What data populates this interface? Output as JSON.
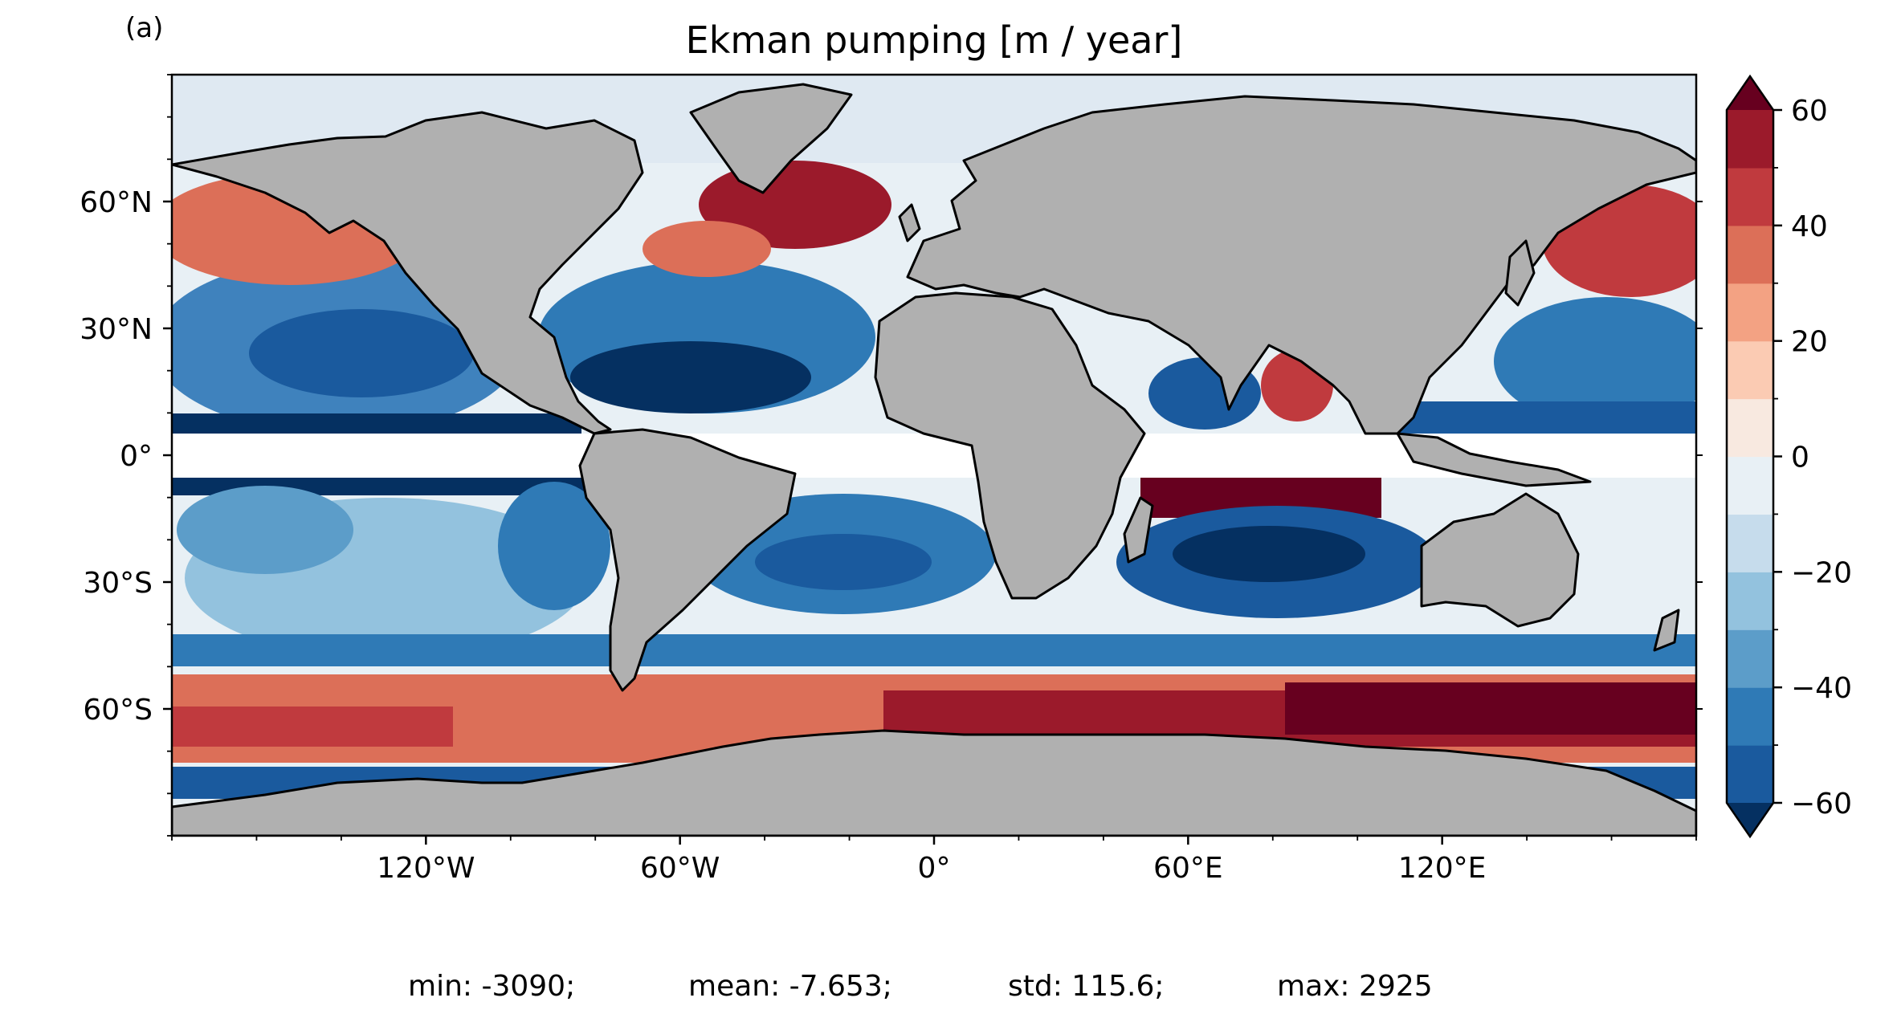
{
  "panel_label": "(a)",
  "title": "Ekman pumping [m / year]",
  "map": {
    "projection": "PlateCarree",
    "lon_range": [
      -180,
      180
    ],
    "lat_range": [
      -90,
      90
    ],
    "land_color": "#b0b0b0",
    "coastline_color": "#000000",
    "masked_band": "equatorial band roughly 5°S–5°N left blank (white)",
    "x_ticks": [
      {
        "value": -120,
        "label": "120°W"
      },
      {
        "value": -60,
        "label": "60°W"
      },
      {
        "value": 0,
        "label": "0°"
      },
      {
        "value": 60,
        "label": "60°E"
      },
      {
        "value": 120,
        "label": "120°E"
      }
    ],
    "y_ticks": [
      {
        "value": 60,
        "label": "60°N"
      },
      {
        "value": 30,
        "label": "30°N"
      },
      {
        "value": 0,
        "label": "0°"
      },
      {
        "value": -30,
        "label": "30°S"
      },
      {
        "value": -60,
        "label": "60°S"
      }
    ]
  },
  "colorbar": {
    "colormap": "RdBu_r",
    "range": [
      -60,
      60
    ],
    "extend": "both",
    "levels": [
      -60,
      -50,
      -40,
      -30,
      -20,
      -10,
      0,
      10,
      20,
      30,
      40,
      50,
      60
    ],
    "tick_labels": [
      "60",
      "40",
      "20",
      "0",
      "−20",
      "−40",
      "−60"
    ],
    "colors_bottom_to_top": [
      "#053061",
      "#1a5a9e",
      "#2f7ab6",
      "#5c9dc9",
      "#93c2de",
      "#c6dcec",
      "#e8f0f5",
      "#f8e9e0",
      "#fbcbb3",
      "#f3a283",
      "#dc6f58",
      "#c03a3e",
      "#9b1a2b",
      "#67001f"
    ]
  },
  "stats": {
    "min": "min: -3090;",
    "mean": "mean: -7.653;",
    "std": "std: 115.6;",
    "max": "max: 2925"
  }
}
